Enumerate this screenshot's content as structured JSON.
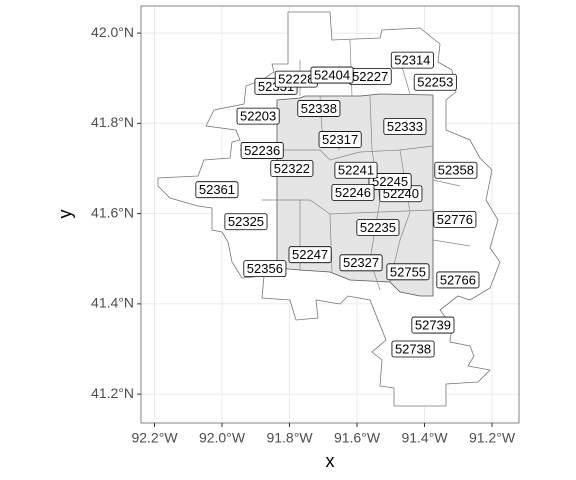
{
  "chart_data": {
    "type": "map",
    "xlabel": "x",
    "ylabel": "y",
    "xlim": [
      -92.24,
      -91.12
    ],
    "ylim": [
      41.136,
      42.06
    ],
    "xticks": [
      {
        "value": -92.2,
        "label": "92.2°W"
      },
      {
        "value": -92.0,
        "label": "92.0°W"
      },
      {
        "value": -91.8,
        "label": "91.8°W"
      },
      {
        "value": -91.6,
        "label": "91.6°W"
      },
      {
        "value": -91.4,
        "label": "91.4°W"
      },
      {
        "value": -91.2,
        "label": "91.2°W"
      }
    ],
    "yticks": [
      {
        "value": 41.2,
        "label": "41.2°N"
      },
      {
        "value": 41.4,
        "label": "41.4°N"
      },
      {
        "value": 41.6,
        "label": "41.6°N"
      },
      {
        "value": 41.8,
        "label": "41.8°N"
      },
      {
        "value": 42.0,
        "label": "42.0°N"
      }
    ],
    "grid": true,
    "labels": [
      {
        "text": "52331",
        "x": -91.84,
        "y": 41.882
      },
      {
        "text": "52228",
        "x": -91.78,
        "y": 41.898
      },
      {
        "text": "52227",
        "x": -91.561,
        "y": 41.904
      },
      {
        "text": "52404",
        "x": -91.674,
        "y": 41.907
      },
      {
        "text": "52314",
        "x": -91.436,
        "y": 41.94
      },
      {
        "text": "52253",
        "x": -91.368,
        "y": 41.891
      },
      {
        "text": "52338",
        "x": -91.713,
        "y": 41.833
      },
      {
        "text": "52203",
        "x": -91.893,
        "y": 41.816
      },
      {
        "text": "52333",
        "x": -91.458,
        "y": 41.793
      },
      {
        "text": "52317",
        "x": -91.65,
        "y": 41.764
      },
      {
        "text": "52236",
        "x": -91.881,
        "y": 41.74
      },
      {
        "text": "52322",
        "x": -91.793,
        "y": 41.7
      },
      {
        "text": "52240",
        "x": -91.47,
        "y": 41.644
      },
      {
        "text": "52245",
        "x": -91.502,
        "y": 41.671
      },
      {
        "text": "52241",
        "x": -91.603,
        "y": 41.696
      },
      {
        "text": "52246",
        "x": -91.612,
        "y": 41.647
      },
      {
        "text": "52358",
        "x": -91.307,
        "y": 41.696
      },
      {
        "text": "52361",
        "x": -92.015,
        "y": 41.653
      },
      {
        "text": "52776",
        "x": -91.31,
        "y": 41.587
      },
      {
        "text": "52325",
        "x": -91.929,
        "y": 41.582
      },
      {
        "text": "52235",
        "x": -91.538,
        "y": 41.569
      },
      {
        "text": "52247",
        "x": -91.739,
        "y": 41.509
      },
      {
        "text": "52327",
        "x": -91.588,
        "y": 41.491
      },
      {
        "text": "52356",
        "x": -91.873,
        "y": 41.478
      },
      {
        "text": "52755",
        "x": -91.449,
        "y": 41.471
      },
      {
        "text": "52766",
        "x": -91.301,
        "y": 41.453
      },
      {
        "text": "52739",
        "x": -91.375,
        "y": 41.353
      },
      {
        "text": "52738",
        "x": -91.434,
        "y": 41.3
      }
    ]
  }
}
